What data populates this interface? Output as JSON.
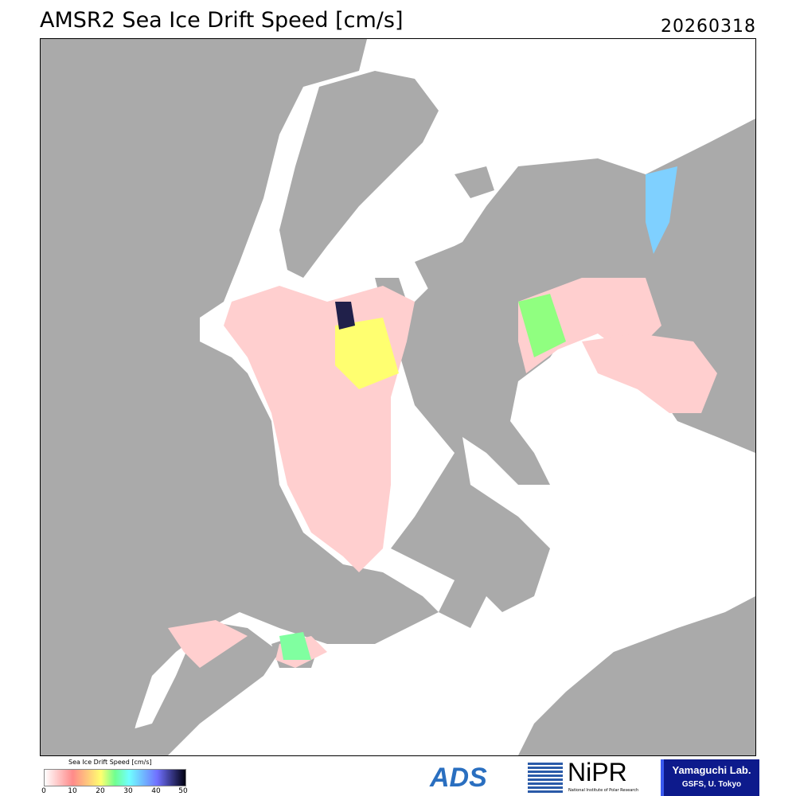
{
  "title": "AMSR2 Sea Ice Drift Speed [cm/s]",
  "date": "20260318",
  "colorbar": {
    "label": "Sea Ice Drift Speed [cm/s]",
    "ticks": [
      "0",
      "10",
      "20",
      "30",
      "40",
      "50"
    ],
    "colors": [
      "#ffffff",
      "#ff8a8a",
      "#ffff70",
      "#70ff90",
      "#70ffff",
      "#7070ff",
      "#000010"
    ]
  },
  "logos": {
    "ads": "ADS",
    "nipr": "NiPR",
    "nipr_sub": "National Institute of Polar Research",
    "yamaguchi_1": "Yamaguchi Lab.",
    "yamaguchi_2": "GSFS, U. Tokyo"
  },
  "colors": {
    "land": "#aaaaaa",
    "ocean": "#ffffff",
    "ice": "#ffd6d6"
  }
}
